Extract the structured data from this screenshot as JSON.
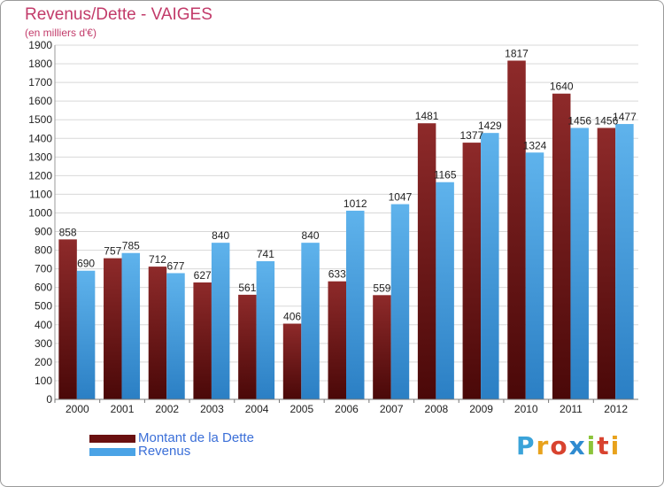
{
  "header": {
    "title": "Revenus/Dette - VAIGES",
    "subtitle": "(en milliers d'€)"
  },
  "legend": {
    "items": [
      {
        "label": "Montant de la Dette",
        "color": "#7a1a1a"
      },
      {
        "label": "Revenus",
        "color": "#4aa3e6"
      }
    ]
  },
  "logo": {
    "text": "Proxiti",
    "colors": [
      "#3aa3d9",
      "#e8a21c",
      "#d8432f",
      "#2f8bd0",
      "#8cc43a",
      "#d8432f",
      "#e8a21c"
    ]
  },
  "chart_data": {
    "type": "bar",
    "title": "Revenus/Dette - VAIGES",
    "subtitle": "(en milliers d'€)",
    "categories": [
      "2000",
      "2001",
      "2002",
      "2003",
      "2004",
      "2005",
      "2006",
      "2007",
      "2008",
      "2009",
      "2010",
      "2011",
      "2012"
    ],
    "series": [
      {
        "name": "Montant de la Dette",
        "color": "#7a1a1a",
        "values": [
          858,
          757,
          712,
          627,
          561,
          406,
          633,
          559,
          1481,
          1377,
          1817,
          1640,
          1456
        ]
      },
      {
        "name": "Revenus",
        "color": "#4aa3e6",
        "values": [
          690,
          785,
          677,
          840,
          741,
          840,
          1012,
          1047,
          1165,
          1429,
          1324,
          1456,
          1477
        ]
      }
    ],
    "ylim": [
      0,
      1900
    ],
    "yticks": [
      0,
      100,
      200,
      300,
      400,
      500,
      600,
      700,
      800,
      900,
      1000,
      1100,
      1200,
      1300,
      1400,
      1500,
      1600,
      1700,
      1800,
      1900
    ],
    "grid": true,
    "legend_position": "bottom-left"
  }
}
